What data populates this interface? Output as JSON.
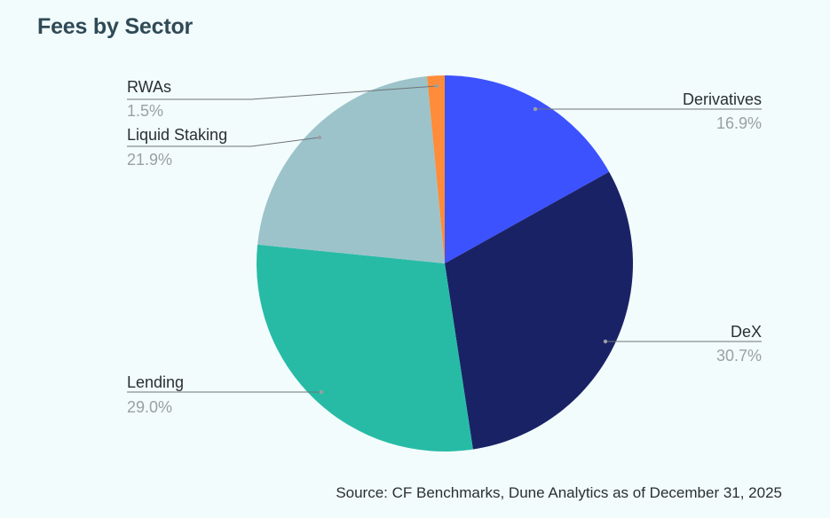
{
  "title": "Fees by Sector",
  "source": "Source: CF Benchmarks, Dune Analytics as of December 31, 2025",
  "chart_data": {
    "type": "pie",
    "title": "Fees by Sector",
    "start_angle_deg": 0,
    "direction": "clockwise",
    "slices": [
      {
        "label": "Derivatives",
        "value": 16.9,
        "display": "16.9%",
        "color": "#3d52ff"
      },
      {
        "label": "DeX",
        "value": 30.7,
        "display": "30.7%",
        "color": "#1a2266"
      },
      {
        "label": "Lending",
        "value": 29.0,
        "display": "29.0%",
        "color": "#27bba6"
      },
      {
        "label": "Liquid Staking",
        "value": 21.9,
        "display": "21.9%",
        "color": "#9cc3c9"
      },
      {
        "label": "RWAs",
        "value": 1.5,
        "display": "1.5%",
        "color": "#ff8c3a"
      }
    ]
  }
}
